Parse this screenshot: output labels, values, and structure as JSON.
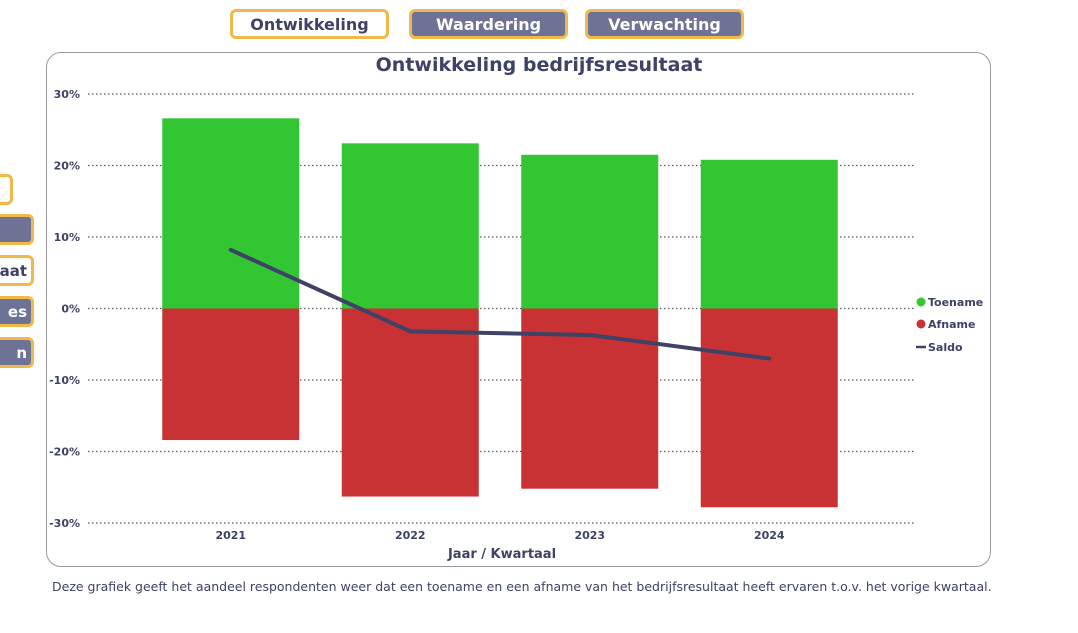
{
  "tabs": [
    {
      "label": "Ontwikkeling",
      "active": true
    },
    {
      "label": "Waardering",
      "active": false
    },
    {
      "label": "Verwachting",
      "active": false
    }
  ],
  "side_buttons": [
    {
      "label": "",
      "active": true
    },
    {
      "label": "",
      "active": false
    },
    {
      "label": "aat",
      "active": true
    },
    {
      "label": "es",
      "active": false
    },
    {
      "label": "n",
      "active": false
    }
  ],
  "colors": {
    "toename": "#33c633",
    "afname": "#c83234",
    "saldo": "#3d4266",
    "accent": "#f0b94a"
  },
  "footnote": "Deze grafiek geeft het aandeel respondenten weer dat een toename en een afname van het bedrijfsresultaat heeft ervaren t.o.v. het vorige kwartaal.",
  "chart_data": {
    "type": "bar",
    "title": "Ontwikkeling bedrijfsresultaat",
    "xlabel": "Jaar / Kwartaal",
    "ylabel": "",
    "categories": [
      "2021",
      "2022",
      "2023",
      "2024"
    ],
    "series": [
      {
        "name": "Toename",
        "type": "bar",
        "values": [
          26.6,
          23.1,
          21.5,
          20.8
        ]
      },
      {
        "name": "Afname",
        "type": "bar",
        "values": [
          -18.4,
          -26.3,
          -25.2,
          -27.8
        ]
      },
      {
        "name": "Saldo",
        "type": "line",
        "values": [
          8.2,
          -3.2,
          -3.7,
          -7.0
        ]
      }
    ],
    "ylim": [
      -30,
      30
    ],
    "yticks": [
      30,
      20,
      10,
      0,
      -10,
      -20,
      -30
    ],
    "ytick_labels": [
      "30%",
      "20%",
      "10%",
      "0%",
      "-10%",
      "-20%",
      "-30%"
    ],
    "grid": true,
    "legend": "right"
  }
}
